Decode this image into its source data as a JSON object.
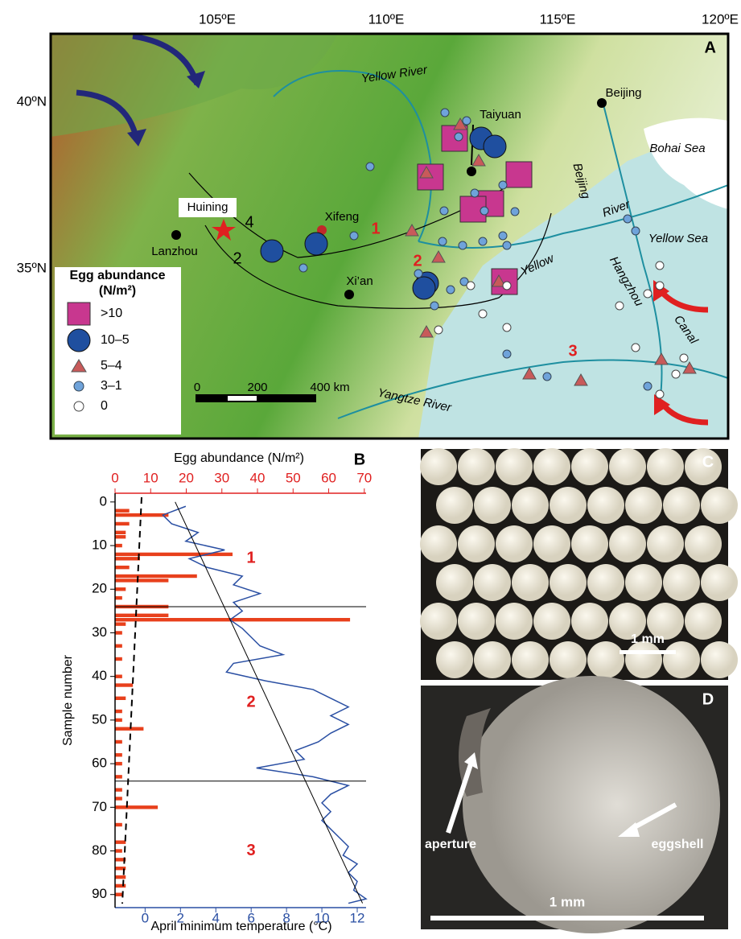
{
  "panel_a": {
    "label": "A",
    "lon_labels": [
      "105ºE",
      "110ºE",
      "115ºE",
      "120ºE"
    ],
    "lat_labels": [
      "40ºN",
      "35ºN"
    ],
    "places": [
      "Yellow River",
      "Beijing",
      "Taiyuan",
      "Bohai Sea",
      "Beijing",
      "River",
      "Yellow Sea",
      "Hangzhou",
      "Canal",
      "Yellow",
      "Yangtze River",
      "Huining",
      "Lanzhou",
      "Xifeng",
      "Xi’an"
    ],
    "zones": [
      "1",
      "2",
      "3"
    ],
    "transects": [
      "4",
      "2"
    ],
    "legend": {
      "title": "Egg abundance",
      "unit": "(N/m²)",
      "items": [
        ">10",
        "10–5",
        "5–4",
        "3–1",
        "0"
      ]
    },
    "scale": [
      "0",
      "200",
      "400 km"
    ]
  },
  "chart_data": {
    "type": "bar",
    "panel": "B",
    "title": "Egg abundance (N/m²)",
    "y_label": "Sample number",
    "x2_label": "April minimum temperature (°C)",
    "xlim": [
      0,
      70.5
    ],
    "xticks": [
      0,
      10,
      20,
      30,
      40,
      50,
      60,
      70
    ],
    "x2lim": [
      -1.7,
      12.5
    ],
    "x2ticks": [
      0,
      2,
      4,
      6,
      8,
      10,
      12
    ],
    "ylim": [
      -2,
      93
    ],
    "yticks": [
      0,
      10,
      20,
      30,
      40,
      50,
      60,
      70,
      80,
      90
    ],
    "y_inverted": true,
    "zone_boundaries": [
      24,
      64
    ],
    "zones": [
      "1",
      "2",
      "3"
    ],
    "bars": {
      "color": "#e8401c",
      "samples": [
        2,
        3,
        5,
        7,
        8,
        10,
        12,
        13,
        15,
        17,
        18,
        20,
        22,
        24,
        26,
        27,
        28,
        30,
        33,
        36,
        40,
        42,
        45,
        48,
        50,
        52,
        55,
        58,
        60,
        63,
        66,
        68,
        70,
        74,
        78,
        80,
        82,
        84,
        86,
        88,
        90
      ],
      "values": [
        4,
        15,
        4,
        3,
        3,
        2,
        33,
        7,
        4,
        23,
        15,
        3,
        2,
        15,
        15,
        66,
        3,
        2,
        2,
        2,
        2,
        5,
        3,
        2,
        2,
        8,
        2,
        2,
        2,
        2,
        2,
        2,
        12,
        2,
        3,
        2,
        3,
        3,
        3,
        3,
        2
      ]
    },
    "line": {
      "color": "#2a4fa3",
      "samples": [
        1,
        3,
        5,
        7,
        9,
        11,
        13,
        15,
        17,
        19,
        21,
        23,
        25,
        27,
        29,
        31,
        33,
        35,
        37,
        39,
        41,
        43,
        45,
        47,
        49,
        51,
        53,
        55,
        57,
        59,
        61,
        63,
        65,
        67,
        69,
        71,
        73,
        75,
        77,
        79,
        81,
        83,
        85,
        87,
        89,
        91,
        92
      ],
      "values": [
        2.3,
        1.0,
        1.5,
        3,
        2.3,
        4.5,
        2.5,
        3.5,
        5.5,
        5.0,
        6.5,
        5.0,
        5.5,
        4.8,
        5.5,
        6.0,
        6.5,
        7.8,
        5.0,
        4.6,
        6.8,
        9.5,
        10.5,
        11.5,
        10.5,
        11.5,
        10.5,
        9.8,
        8.5,
        9.0,
        6.3,
        9.5,
        11.5,
        10.5,
        10.0,
        10.5,
        10.0,
        10.5,
        11.0,
        11.5,
        11.2,
        12.0,
        11.5,
        12.0,
        11.8,
        12.5,
        11.5
      ]
    },
    "trend": {
      "samples": [
        0,
        92
      ],
      "values": [
        1.7,
        12.3
      ]
    }
  },
  "panel_c": {
    "label": "C",
    "scale": "1 mm"
  },
  "panel_d": {
    "label": "D",
    "annotations": [
      "aperture",
      "eggshell"
    ],
    "scale": "1 mm"
  }
}
